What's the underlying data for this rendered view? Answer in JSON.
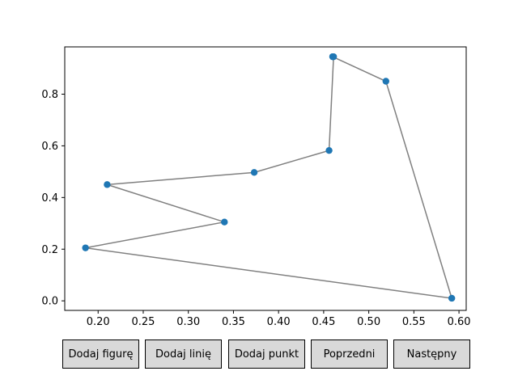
{
  "buttons": [
    {
      "label": "Dodaj figurę"
    },
    {
      "label": "Dodaj linię"
    },
    {
      "label": "Dodaj punkt"
    },
    {
      "label": "Poprzedni"
    },
    {
      "label": "Następny"
    }
  ],
  "colors": {
    "line": "#808080",
    "marker": "#1f77b4",
    "button_face": "#d9d9d9"
  },
  "chart_data": {
    "type": "line",
    "title": "",
    "xlabel": "",
    "ylabel": "",
    "xlim": [
      0.163,
      0.608
    ],
    "ylim": [
      -0.037,
      0.983
    ],
    "xticks": [
      "0.20",
      "0.25",
      "0.30",
      "0.35",
      "0.40",
      "0.45",
      "0.50",
      "0.55",
      "0.60"
    ],
    "yticks": [
      "0.0",
      "0.2",
      "0.4",
      "0.6",
      "0.8"
    ],
    "grid": false,
    "legend": "none",
    "series": [
      {
        "x": [
          0.46,
          0.519,
          0.592,
          0.186,
          0.34,
          0.21,
          0.373,
          0.456,
          0.461,
          0.46
        ],
        "y": [
          0.945,
          0.85,
          0.01,
          0.205,
          0.305,
          0.45,
          0.497,
          0.582,
          0.945,
          0.945
        ]
      }
    ]
  }
}
